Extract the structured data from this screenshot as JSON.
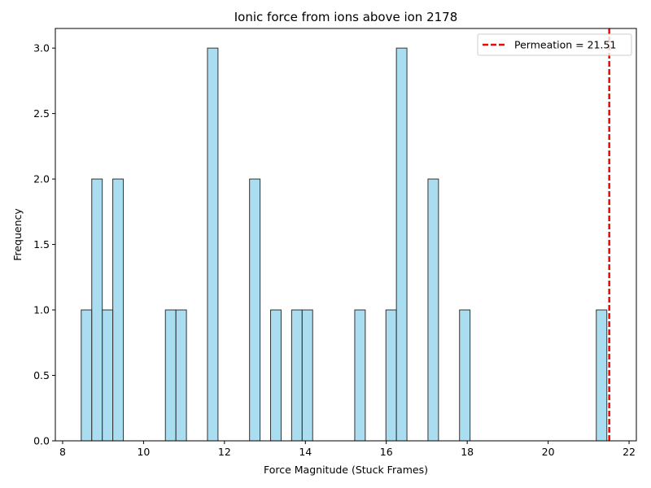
{
  "chart_data": {
    "type": "bar",
    "title": "Ionic force from ions above ion 2178",
    "xlabel": "Force Magnitude (Stuck Frames)",
    "ylabel": "Frequency",
    "xlim": [
      7.82,
      22.18
    ],
    "ylim": [
      0,
      3.15
    ],
    "bin_width": 0.26,
    "xticks": [
      8,
      10,
      12,
      14,
      16,
      18,
      20,
      22
    ],
    "yticks": [
      0.0,
      0.5,
      1.0,
      1.5,
      2.0,
      2.5,
      3.0
    ],
    "xtick_labels": [
      "8",
      "10",
      "12",
      "14",
      "16",
      "18",
      "20",
      "22"
    ],
    "ytick_labels": [
      "0.0",
      "0.5",
      "1.0",
      "1.5",
      "2.0",
      "2.5",
      "3.0"
    ],
    "bins": [
      {
        "x": 8.46,
        "count": 1
      },
      {
        "x": 8.72,
        "count": 2
      },
      {
        "x": 8.98,
        "count": 1
      },
      {
        "x": 9.24,
        "count": 2
      },
      {
        "x": 10.54,
        "count": 1
      },
      {
        "x": 10.8,
        "count": 1
      },
      {
        "x": 11.58,
        "count": 3
      },
      {
        "x": 12.62,
        "count": 2
      },
      {
        "x": 13.14,
        "count": 1
      },
      {
        "x": 13.66,
        "count": 1
      },
      {
        "x": 13.92,
        "count": 1
      },
      {
        "x": 15.22,
        "count": 1
      },
      {
        "x": 15.99,
        "count": 1
      },
      {
        "x": 16.25,
        "count": 3
      },
      {
        "x": 17.03,
        "count": 2
      },
      {
        "x": 17.81,
        "count": 1
      },
      {
        "x": 21.19,
        "count": 1
      }
    ],
    "bar_color": "#87CEEB",
    "bar_edge_color": "#333333",
    "reference_line": {
      "x": 21.51,
      "color": "#ff0000",
      "label": "Permeation = 21.51"
    },
    "legend_position": "top-right",
    "grid": false
  }
}
